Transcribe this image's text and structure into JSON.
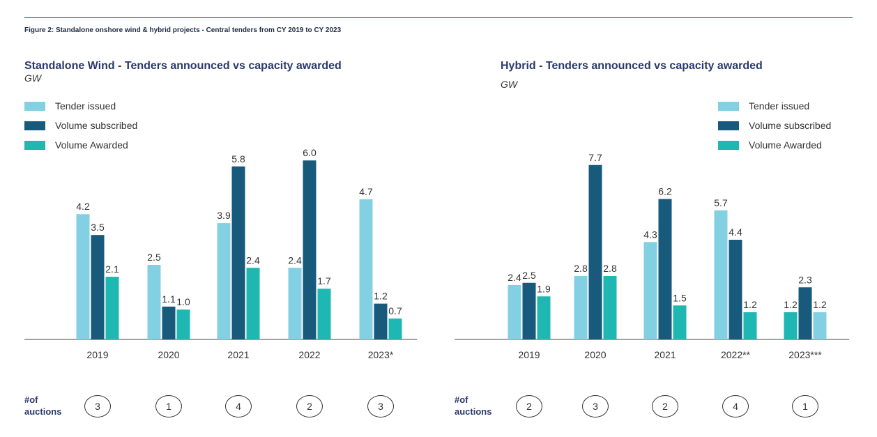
{
  "figure_caption": "Figure 2: Standalone onshore wind & hybrid projects - Central tenders from CY 2019 to CY 2023",
  "auctions_label_line1": "#of",
  "auctions_label_line2": "auctions",
  "colors": {
    "tender_issued": "#84d0e3",
    "volume_subscribed": "#175a7c",
    "volume_awarded": "#1fb7b1",
    "title": "#2a3a6b",
    "rule": "#1a4f73"
  },
  "chart_data": [
    {
      "type": "bar",
      "title": "Standalone Wind - Tenders announced vs capacity awarded",
      "unit": "GW",
      "categories": [
        "2019",
        "2020",
        "2021",
        "2022",
        "2023*"
      ],
      "series": [
        {
          "name": "Tender issued",
          "values": [
            4.2,
            2.5,
            3.9,
            2.4,
            4.7
          ]
        },
        {
          "name": "Volume subscribed",
          "values": [
            3.5,
            1.1,
            5.8,
            6.0,
            1.2
          ]
        },
        {
          "name": "Volume Awarded",
          "values": [
            2.1,
            1.0,
            2.4,
            1.7,
            0.7
          ]
        }
      ],
      "ylim": [
        0,
        8
      ],
      "legend": [
        "Tender issued",
        "Volume subscribed",
        "Volume Awarded"
      ],
      "legend_position": "top-left",
      "auctions": [
        "3",
        "1",
        "4",
        "2",
        "3"
      ]
    },
    {
      "type": "bar",
      "title": "Hybrid - Tenders announced vs capacity awarded",
      "unit": "GW",
      "categories": [
        "2019",
        "2020",
        "2021",
        "2022**",
        "2023***"
      ],
      "series": [
        {
          "name": "Tender issued",
          "values": [
            2.4,
            2.8,
            4.3,
            5.7,
            1.2
          ]
        },
        {
          "name": "Volume subscribed",
          "values": [
            2.5,
            7.7,
            6.2,
            4.4,
            2.3
          ]
        },
        {
          "name": "Volume Awarded",
          "values": [
            1.9,
            2.8,
            1.5,
            1.2,
            1.2
          ]
        }
      ],
      "ylim": [
        0,
        8
      ],
      "legend": [
        "Tender issued",
        "Volume subscribed",
        "Volume Awarded"
      ],
      "legend_position": "top-right",
      "auctions": [
        "2",
        "3",
        "2",
        "4",
        "1"
      ]
    }
  ]
}
